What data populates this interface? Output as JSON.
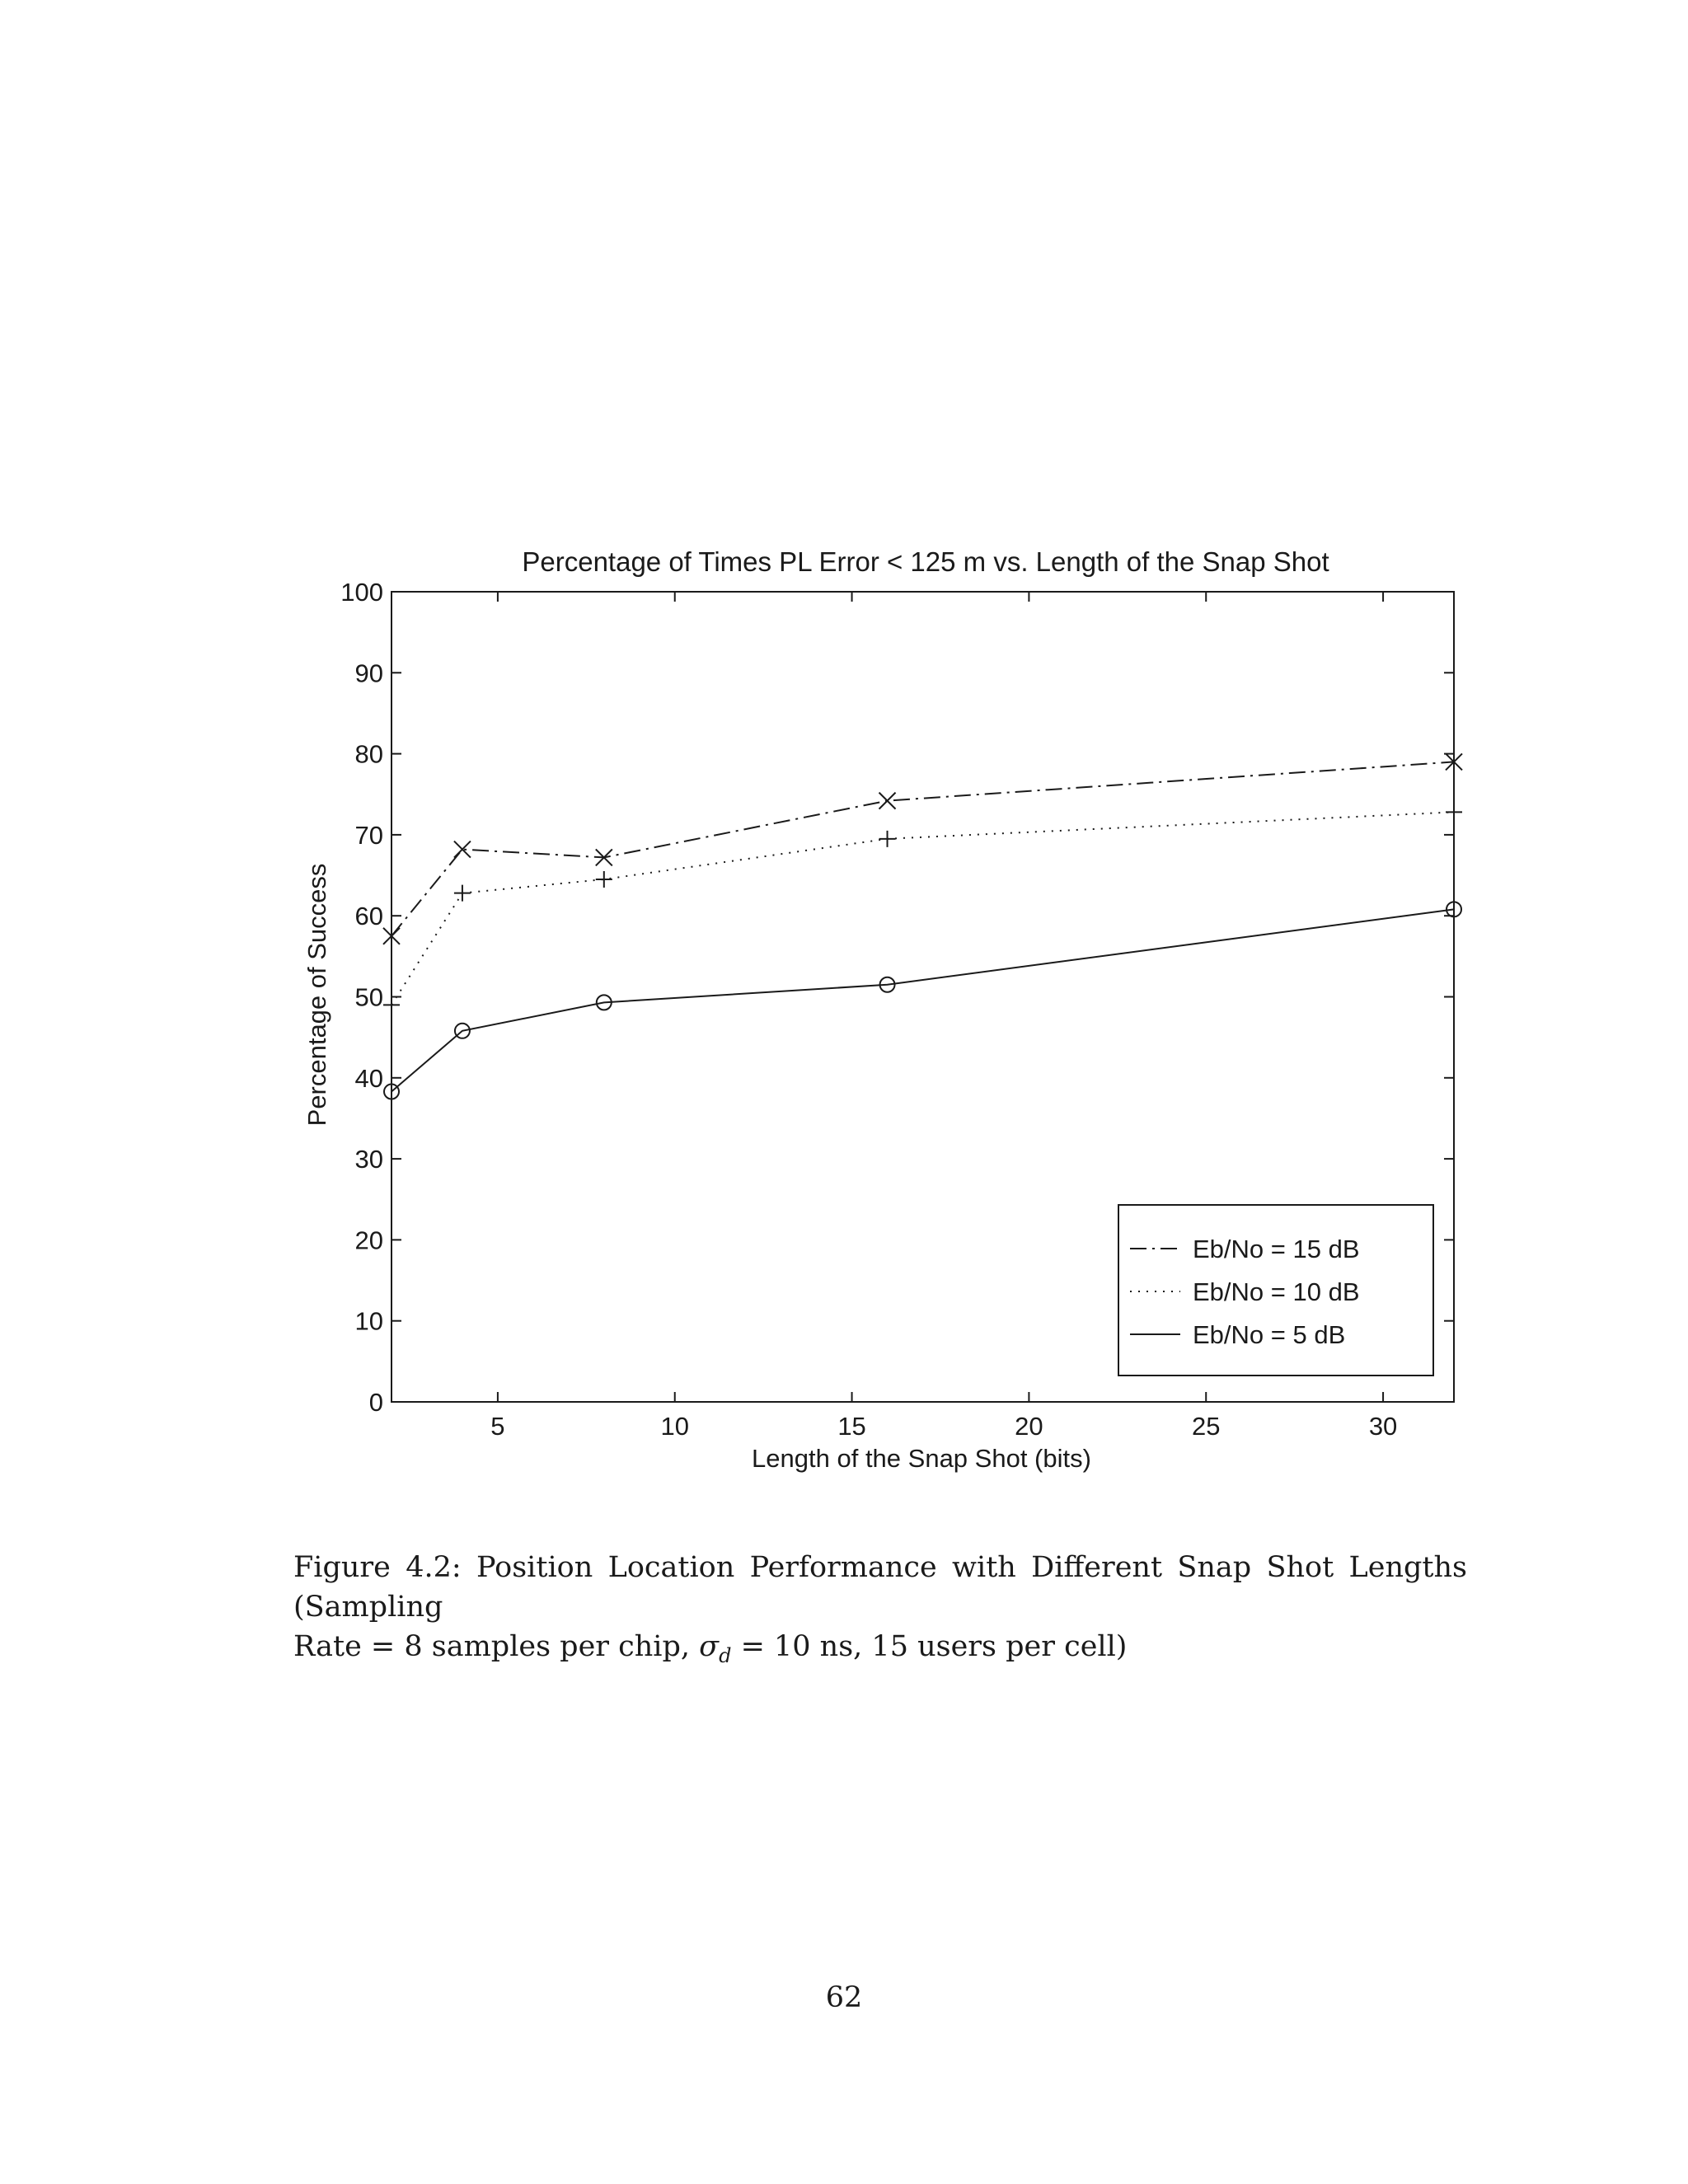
{
  "chart_data": {
    "type": "line",
    "title": "Percentage of Times PL Error < 125 m vs. Length of the Snap Shot",
    "xlabel": "Length of the Snap Shot (bits)",
    "ylabel": "Percentage of Success",
    "xlim": [
      2,
      32
    ],
    "ylim": [
      0,
      100
    ],
    "xticks": [
      5,
      10,
      15,
      20,
      25,
      30
    ],
    "yticks": [
      0,
      10,
      20,
      30,
      40,
      50,
      60,
      70,
      80,
      90,
      100
    ],
    "grid": false,
    "legend_position": "bottom-right",
    "x": [
      2,
      4,
      8,
      16,
      32
    ],
    "series": [
      {
        "name": "Eb/No = 15 dB",
        "values": [
          57.5,
          68.2,
          67.2,
          74.2,
          79.0
        ],
        "line_style": "dash-dot",
        "marker": "x"
      },
      {
        "name": "Eb/No = 10 dB",
        "values": [
          49.0,
          62.8,
          64.5,
          69.5,
          72.8
        ],
        "line_style": "dotted",
        "marker": "+"
      },
      {
        "name": "Eb/No = 5 dB",
        "values": [
          38.3,
          45.8,
          49.3,
          51.5,
          60.8
        ],
        "line_style": "solid",
        "marker": "o"
      }
    ]
  },
  "caption": {
    "line1": "Figure 4.2: Position Location Performance with Different Snap Shot Lengths (Sampling",
    "line2_pre": "Rate = 8 samples per chip, ",
    "sigma": "σ",
    "sigma_sub": "d",
    "line2_post": " = 10 ns, 15 users per cell)"
  },
  "page_number": "62"
}
